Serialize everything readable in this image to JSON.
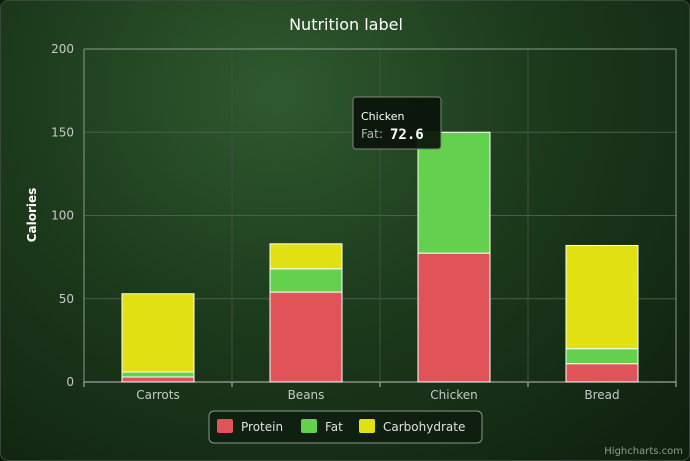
{
  "chart_data": {
    "type": "bar",
    "stacked": true,
    "title": "Nutrition label",
    "xlabel": "",
    "ylabel": "Calories",
    "ylim": [
      0,
      200
    ],
    "yticks": [
      "0",
      "50",
      "100",
      "150",
      "200"
    ],
    "categories": [
      "Carrots",
      "Beans",
      "Chicken",
      "Bread"
    ],
    "series": [
      {
        "name": "Protein",
        "color": "#e05358",
        "values": [
          3,
          54,
          77.4,
          11
        ]
      },
      {
        "name": "Fat",
        "color": "#63d14d",
        "values": [
          3,
          14,
          72.6,
          9
        ]
      },
      {
        "name": "Carbohydrate",
        "color": "#e0e012",
        "values": [
          47,
          15,
          0,
          62
        ]
      }
    ],
    "legend": {
      "placement": "bottom-center"
    },
    "grid": true
  },
  "tooltip": {
    "category": "Chicken",
    "series_label": "Fat:",
    "value": "72.6"
  },
  "credits": "Highcharts.com"
}
